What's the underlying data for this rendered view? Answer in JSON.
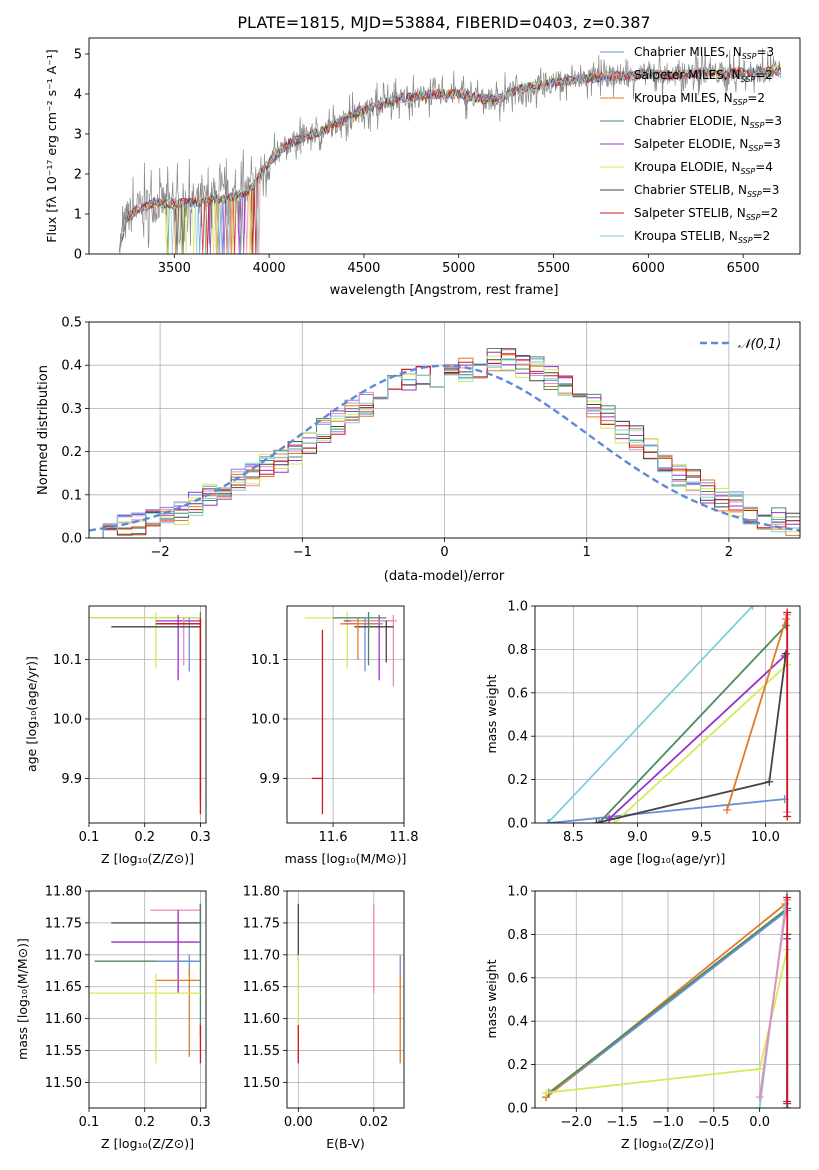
{
  "figure": {
    "title": "PLATE=1815, MJD=53884, FIBERID=0403, z=0.387"
  },
  "models": [
    {
      "name": "Chabrier MILES",
      "nssp": "3",
      "color": "#6a8fdc"
    },
    {
      "name": "Salpeter MILES",
      "nssp": "2",
      "color": "#ee88bb"
    },
    {
      "name": "Kroupa MILES",
      "nssp": "2",
      "color": "#e07b2a"
    },
    {
      "name": "Chabrier ELODIE",
      "nssp": "3",
      "color": "#4f8a5c"
    },
    {
      "name": "Salpeter ELODIE",
      "nssp": "3",
      "color": "#9b30c8"
    },
    {
      "name": "Kroupa ELODIE",
      "nssp": "4",
      "color": "#d7e85a"
    },
    {
      "name": "Chabrier STELIB",
      "nssp": "3",
      "color": "#444444"
    },
    {
      "name": "Salpeter STELIB",
      "nssp": "2",
      "color": "#cc1818"
    },
    {
      "name": "Kroupa STELIB",
      "nssp": "2",
      "color": "#7fd0dd"
    }
  ],
  "legend_nssp_label": "N",
  "legend_nssp_sub": "SSP",
  "chart_data": [
    {
      "id": "spectrum",
      "type": "line",
      "xlabel": "wavelength [Angstrom, rest frame]",
      "ylabel": "Flux [fλ 10⁻¹⁷ erg cm⁻² s⁻¹ A⁻¹]",
      "xlim": [
        3050,
        6800
      ],
      "ylim": [
        0,
        5.4
      ],
      "xticks": [
        3500,
        4000,
        4500,
        5000,
        5500,
        6000,
        6500
      ],
      "yticks": [
        0,
        1,
        2,
        3,
        4,
        5
      ],
      "data_color": "#888888",
      "continuum": {
        "x": [
          3200,
          3250,
          3300,
          3400,
          3500,
          3600,
          3700,
          3800,
          3900,
          4000,
          4100,
          4200,
          4300,
          4400,
          4500,
          4600,
          4700,
          4800,
          4900,
          5000,
          5100,
          5200,
          5300,
          5400,
          5500,
          5600,
          5700,
          5800,
          5900,
          6000,
          6100,
          6200,
          6300,
          6400,
          6500,
          6600,
          6700
        ],
        "y": [
          0,
          0.9,
          1.1,
          1.3,
          1.25,
          1.3,
          1.35,
          1.4,
          1.6,
          2.3,
          2.75,
          2.95,
          3.1,
          3.4,
          3.6,
          3.75,
          3.9,
          3.95,
          4.0,
          4.0,
          3.9,
          3.85,
          4.1,
          4.2,
          4.3,
          4.35,
          4.4,
          4.45,
          4.45,
          4.5,
          4.45,
          4.5,
          4.55,
          4.5,
          4.55,
          4.55,
          4.6
        ]
      },
      "grid": false,
      "legend": "top-right"
    },
    {
      "id": "residuals",
      "type": "histogram",
      "xlabel": "(data-model)/error",
      "ylabel": "Normed distribution",
      "xlim": [
        -2.5,
        2.5
      ],
      "ylim": [
        0,
        0.5
      ],
      "xticks": [
        -2,
        -1,
        0,
        1,
        2
      ],
      "yticks": [
        0.0,
        0.1,
        0.2,
        0.3,
        0.4,
        0.5
      ],
      "bin_width": 0.1,
      "bin_start": -2.5,
      "base_values": [
        0.02,
        0.02,
        0.03,
        0.03,
        0.04,
        0.05,
        0.06,
        0.08,
        0.1,
        0.11,
        0.13,
        0.15,
        0.17,
        0.18,
        0.2,
        0.22,
        0.25,
        0.27,
        0.29,
        0.31,
        0.33,
        0.35,
        0.37,
        0.38,
        0.38,
        0.38,
        0.39,
        0.4,
        0.41,
        0.41,
        0.4,
        0.39,
        0.37,
        0.35,
        0.33,
        0.31,
        0.28,
        0.25,
        0.23,
        0.2,
        0.18,
        0.15,
        0.13,
        0.11,
        0.09,
        0.08,
        0.06,
        0.05,
        0.04,
        0.03
      ],
      "normal_curve": {
        "mean": 0,
        "std": 1,
        "color": "#5b8bd6",
        "legend": "𝒩(0,1)"
      },
      "grid": true,
      "legend": "top-right"
    },
    {
      "id": "age-vs-Z",
      "type": "errorbar",
      "xlabel": "Z [log₁₀(Z/Z⊙)]",
      "ylabel": "age  [log₁₀(age/yr)]",
      "xlim": [
        0.1,
        0.31
      ],
      "ylim": [
        9.825,
        10.19
      ],
      "xticks": [
        0.1,
        0.2,
        0.3
      ],
      "yticks": [
        9.9,
        10.0,
        10.1
      ],
      "points": [
        {
          "model": 3,
          "x": 0.3,
          "y": 10.17,
          "xerr": [
            0.2,
            0
          ],
          "yerr": [
            0.3,
            0.01
          ]
        },
        {
          "model": 5,
          "x": 0.22,
          "y": 10.17,
          "xerr": [
            0.12,
            0.08
          ],
          "yerr": [
            0.085,
            0.01
          ]
        },
        {
          "model": 4,
          "x": 0.26,
          "y": 10.165,
          "xerr": [
            0.04,
            0.04
          ],
          "yerr": [
            0.1,
            0.01
          ]
        },
        {
          "model": 1,
          "x": 0.27,
          "y": 10.16,
          "xerr": [
            0.05,
            0.03
          ],
          "yerr": [
            0.07,
            0.01
          ]
        },
        {
          "model": 0,
          "x": 0.28,
          "y": 10.16,
          "xerr": [
            0.06,
            0.02
          ],
          "yerr": [
            0.08,
            0.01
          ]
        },
        {
          "model": 6,
          "x": 0.3,
          "y": 10.155,
          "xerr": [
            0.16,
            0.0
          ],
          "yerr": [
            0.075,
            0.01
          ]
        },
        {
          "model": 2,
          "x": 0.3,
          "y": 10.16,
          "xerr": [
            0.08,
            0.0
          ],
          "yerr": [
            0.3,
            0.01
          ]
        },
        {
          "model": 7,
          "x": 0.3,
          "y": 10.16,
          "xerr": [
            0.08,
            0.0
          ],
          "yerr": [
            0.32,
            0.01
          ]
        },
        {
          "model": 8,
          "x": 0.3,
          "y": 9.9,
          "xerr": [
            0.0,
            0.0
          ],
          "yerr": [
            0.0,
            0.0
          ]
        }
      ],
      "grid": true
    },
    {
      "id": "age-vs-mass",
      "type": "errorbar",
      "xlabel": "mass [log₁₀(M/M⊙)]",
      "xlim": [
        11.47,
        11.8
      ],
      "ylim": [
        9.825,
        10.19
      ],
      "xticks": [
        11.6,
        11.8
      ],
      "yticks": [
        9.9,
        10.0,
        10.1
      ],
      "points": [
        {
          "model": 5,
          "x": 11.64,
          "y": 10.17,
          "xerr": [
            0.12,
            0.05
          ],
          "yerr": [
            0.085,
            0.01
          ]
        },
        {
          "model": 4,
          "x": 11.73,
          "y": 10.165,
          "xerr": [
            0.1,
            0.04
          ],
          "yerr": [
            0.1,
            0.01
          ]
        },
        {
          "model": 1,
          "x": 11.77,
          "y": 10.165,
          "xerr": [
            0.12,
            0.01
          ],
          "yerr": [
            0.11,
            0.01
          ]
        },
        {
          "model": 0,
          "x": 11.69,
          "y": 10.16,
          "xerr": [
            0.06,
            0.05
          ],
          "yerr": [
            0.08,
            0.01
          ]
        },
        {
          "model": 6,
          "x": 11.75,
          "y": 10.155,
          "xerr": [
            0.09,
            0.02
          ],
          "yerr": [
            0.06,
            0.01
          ]
        },
        {
          "model": 2,
          "x": 11.67,
          "y": 10.16,
          "xerr": [
            0.05,
            0.06
          ],
          "yerr": [
            0.06,
            0.01
          ]
        },
        {
          "model": 3,
          "x": 11.7,
          "y": 10.17,
          "xerr": [
            0.1,
            0.05
          ],
          "yerr": [
            0.08,
            0.01
          ]
        },
        {
          "model": 7,
          "x": 11.57,
          "y": 9.9,
          "xerr": [
            0.03,
            0.0
          ],
          "yerr": [
            0.06,
            0.25
          ]
        },
        {
          "model": 8,
          "x": 11.47,
          "y": 9.9,
          "xerr": [
            0.0,
            0.0
          ],
          "yerr": [
            0.0,
            0.0
          ]
        }
      ],
      "grid": true
    },
    {
      "id": "massweight-vs-age",
      "type": "line",
      "xlabel": "age  [log₁₀(age/yr)]",
      "ylabel": "mass weight",
      "xlim": [
        8.2,
        10.27
      ],
      "ylim": [
        0,
        1
      ],
      "xticks": [
        8.5,
        9.0,
        9.5,
        10.0
      ],
      "yticks": [
        0.0,
        0.2,
        0.4,
        0.6,
        0.8,
        1.0
      ],
      "series": [
        {
          "model": 8,
          "x": [
            8.3,
            9.9
          ],
          "y": [
            0.0,
            1.0
          ]
        },
        {
          "model": 0,
          "x": [
            8.31,
            10.15
          ],
          "y": [
            0.0,
            0.11
          ]
        },
        {
          "model": 3,
          "x": [
            8.7,
            10.16
          ],
          "y": [
            0.0,
            0.91
          ]
        },
        {
          "model": 4,
          "x": [
            8.78,
            10.15
          ],
          "y": [
            0.02,
            0.77
          ]
        },
        {
          "model": 5,
          "x": [
            8.82,
            10.17
          ],
          "y": [
            0.0,
            0.73
          ]
        },
        {
          "model": 6,
          "x": [
            8.68,
            10.03,
            10.16
          ],
          "y": [
            0.0,
            0.19,
            0.78
          ]
        },
        {
          "model": 2,
          "x": [
            9.7,
            10.16
          ],
          "y": [
            0.06,
            0.94
          ]
        },
        {
          "model": 1,
          "x": [
            10.17,
            10.17
          ],
          "y": [
            0.05,
            0.96
          ]
        },
        {
          "model": 7,
          "x": [
            10.17,
            10.17
          ],
          "y": [
            0.03,
            0.97
          ]
        }
      ],
      "grid": true
    },
    {
      "id": "mass-vs-Z",
      "type": "errorbar",
      "xlabel": "Z [log₁₀(Z/Z⊙)]",
      "ylabel": "mass [log₁₀(M/M⊙)]",
      "xlim": [
        0.1,
        0.31
      ],
      "ylim": [
        11.46,
        11.8
      ],
      "xticks": [
        0.1,
        0.2,
        0.3
      ],
      "yticks": [
        11.5,
        11.55,
        11.6,
        11.65,
        11.7,
        11.75,
        11.8
      ],
      "points": [
        {
          "model": 6,
          "x": 0.3,
          "y": 11.75,
          "xerr": [
            0.16,
            0.0
          ],
          "yerr": [
            0.06,
            0.03
          ]
        },
        {
          "model": 1,
          "x": 0.26,
          "y": 11.77,
          "xerr": [
            0.05,
            0.04
          ],
          "yerr": [
            0.13,
            0.0
          ]
        },
        {
          "model": 4,
          "x": 0.26,
          "y": 11.72,
          "xerr": [
            0.12,
            0.04
          ],
          "yerr": [
            0.08,
            0.05
          ]
        },
        {
          "model": 3,
          "x": 0.3,
          "y": 11.69,
          "xerr": [
            0.19,
            0.0
          ],
          "yerr": [
            0.12,
            0.09
          ]
        },
        {
          "model": 0,
          "x": 0.28,
          "y": 11.69,
          "xerr": [
            0.06,
            0.02
          ],
          "yerr": [
            0.02,
            0.01
          ]
        },
        {
          "model": 2,
          "x": 0.28,
          "y": 11.66,
          "xerr": [
            0.06,
            0.02
          ],
          "yerr": [
            0.12,
            0.02
          ]
        },
        {
          "model": 5,
          "x": 0.22,
          "y": 11.64,
          "xerr": [
            0.12,
            0.08
          ],
          "yerr": [
            0.11,
            0.03
          ]
        },
        {
          "model": 7,
          "x": 0.3,
          "y": 11.56,
          "xerr": [
            0.0,
            0.0
          ],
          "yerr": [
            0.03,
            0.03
          ]
        },
        {
          "model": 8,
          "x": 0.3,
          "y": 11.46,
          "xerr": [
            0.0,
            0.0
          ],
          "yerr": [
            0.0,
            0.0
          ]
        }
      ],
      "grid": true
    },
    {
      "id": "mass-vs-ebv",
      "type": "errorbar",
      "xlabel": "E(B-V)",
      "xlim": [
        -0.003,
        0.028
      ],
      "ylim": [
        11.46,
        11.8
      ],
      "xticks": [
        0.0,
        0.02
      ],
      "yticks": [
        11.5,
        11.55,
        11.6,
        11.65,
        11.7,
        11.75,
        11.8
      ],
      "points": [
        {
          "model": 6,
          "x": 0.0,
          "y": 11.75,
          "xerr": [
            0,
            0
          ],
          "yerr": [
            0.06,
            0.03
          ]
        },
        {
          "model": 5,
          "x": 0.0,
          "y": 11.67,
          "xerr": [
            0,
            0
          ],
          "yerr": [
            0.1,
            0.03
          ]
        },
        {
          "model": 7,
          "x": 0.0,
          "y": 11.56,
          "xerr": [
            0,
            0
          ],
          "yerr": [
            0.03,
            0.03
          ]
        },
        {
          "model": 1,
          "x": 0.02,
          "y": 11.72,
          "xerr": [
            0,
            0
          ],
          "yerr": [
            0.08,
            0.06
          ]
        },
        {
          "model": 0,
          "x": 0.027,
          "y": 11.68,
          "xerr": [
            0,
            0
          ],
          "yerr": [
            0.02,
            0.02
          ]
        },
        {
          "model": 2,
          "x": 0.027,
          "y": 11.6,
          "xerr": [
            0,
            0
          ],
          "yerr": [
            0.07,
            0.07
          ]
        }
      ],
      "grid": true
    },
    {
      "id": "massweight-vs-Z",
      "type": "line",
      "xlabel": "Z [log₁₀(Z/Z⊙)]",
      "ylabel": "mass weight",
      "xlim": [
        -2.45,
        0.44
      ],
      "ylim": [
        0,
        1
      ],
      "xticks": [
        -2.0,
        -1.5,
        -1.0,
        -0.5,
        0.0
      ],
      "yticks": [
        0.0,
        0.2,
        0.4,
        0.6,
        0.8,
        1.0
      ],
      "series": [
        {
          "model": 0,
          "x": [
            -2.33,
            0.3
          ],
          "y": [
            0.05,
            0.91
          ]
        },
        {
          "model": 2,
          "x": [
            -2.33,
            0.28
          ],
          "y": [
            0.05,
            0.94
          ]
        },
        {
          "model": 3,
          "x": [
            -2.3,
            0.3
          ],
          "y": [
            0.07,
            0.92
          ]
        },
        {
          "model": 5,
          "x": [
            -2.33,
            0.0,
            0.3
          ],
          "y": [
            0.07,
            0.18,
            0.73
          ]
        },
        {
          "model": 8,
          "x": [
            0.0,
            0.3
          ],
          "y": [
            0.0,
            1.0
          ]
        },
        {
          "model": 1,
          "x": [
            0.0,
            0.3
          ],
          "y": [
            0.05,
            0.96
          ]
        },
        {
          "model": 4,
          "x": [
            0.3,
            0.3
          ],
          "y": [
            0.02,
            0.78
          ]
        },
        {
          "model": 6,
          "x": [
            0.3,
            0.3
          ],
          "y": [
            0.0,
            0.8
          ]
        },
        {
          "model": 7,
          "x": [
            0.3,
            0.3
          ],
          "y": [
            0.03,
            0.97
          ]
        }
      ],
      "grid": true
    }
  ],
  "tick_labels": {
    "spectrum_x": [
      "3500",
      "4000",
      "4500",
      "5000",
      "5500",
      "6000",
      "6500"
    ],
    "spectrum_y": [
      "0",
      "1",
      "2",
      "3",
      "4",
      "5"
    ],
    "residuals_x": [
      "−2",
      "−1",
      "0",
      "1",
      "2"
    ],
    "residuals_y": [
      "0.0",
      "0.1",
      "0.2",
      "0.3",
      "0.4",
      "0.5"
    ],
    "ageZ_x": [
      "0.1",
      "0.2",
      "0.3"
    ],
    "age_y": [
      "9.9",
      "10.0",
      "10.1"
    ],
    "ageMass_x": [
      "11.6",
      "11.8"
    ],
    "mwAge_x": [
      "8.5",
      "9.0",
      "9.5",
      "10.0"
    ],
    "mw_y": [
      "0.0",
      "0.2",
      "0.4",
      "0.6",
      "0.8",
      "1.0"
    ],
    "mass_y": [
      "11.50",
      "11.55",
      "11.60",
      "11.65",
      "11.70",
      "11.75",
      "11.80"
    ],
    "ebv_x": [
      "0.00",
      "0.02"
    ],
    "mwZ_x": [
      "−2.0",
      "−1.5",
      "−1.0",
      "−0.5",
      "0.0"
    ]
  }
}
